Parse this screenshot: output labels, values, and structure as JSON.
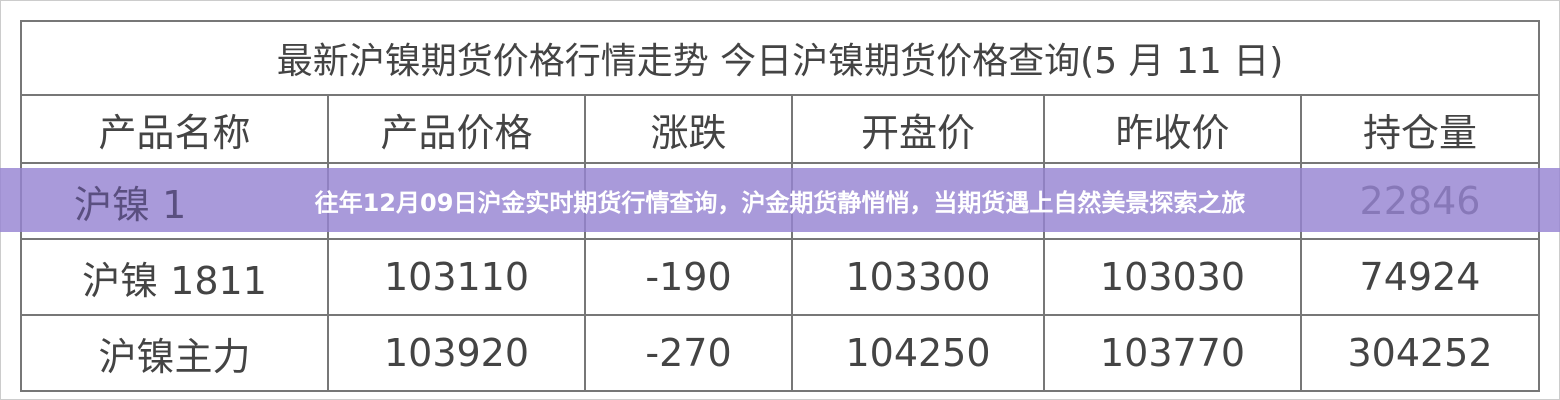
{
  "table": {
    "title": "最新沪镍期货价格行情走势 今日沪镍期货价格查询(5 月 11 日)",
    "headers": [
      "产品名称",
      "产品价格",
      "涨跌",
      "开盘价",
      "昨收价",
      "持仓量"
    ],
    "rows": [
      [
        "沪镍 1",
        "",
        "",
        "",
        "",
        "22846"
      ],
      [
        "沪镍 1811",
        "103110",
        "-190",
        "103300",
        "103030",
        "74924"
      ],
      [
        "沪镍主力",
        "103920",
        "-270",
        "104250",
        "103770",
        "304252"
      ]
    ]
  },
  "banner": {
    "text": "往年12月09日沪金实时期货行情查询，沪金期货静悄悄，当期货遇上自然美景探索之旅"
  },
  "colors": {
    "banner": "#9684d2",
    "border": "#777777",
    "text": "#444444"
  }
}
